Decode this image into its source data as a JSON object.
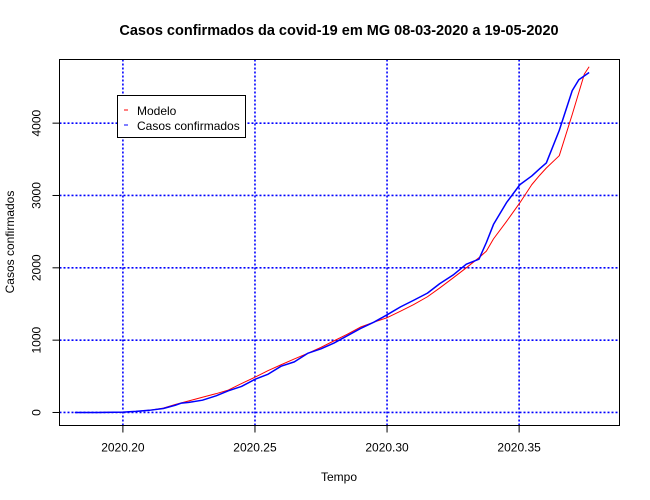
{
  "chart_data": {
    "type": "line",
    "title": "Casos confirmados da covid-19 em MG 08-03-2020 a 19-05-2020",
    "xlabel": "Tempo",
    "ylabel": "Casos confirmados",
    "xlim": [
      2020.176,
      2020.388
    ],
    "ylim": [
      -180,
      4880
    ],
    "x_ticks": [
      2020.2,
      2020.25,
      2020.3,
      2020.35
    ],
    "x_tick_labels": [
      "2020.20",
      "2020.25",
      "2020.30",
      "2020.35"
    ],
    "y_ticks": [
      0,
      1000,
      2000,
      3000,
      4000
    ],
    "y_tick_labels": [
      "0",
      "1000",
      "2000",
      "3000",
      "4000"
    ],
    "grid": true,
    "grid_color": "#0000ff",
    "legend_position": "top-left",
    "series": [
      {
        "name": "Modelo",
        "color": "#ff0000",
        "x": [
          2020.1818,
          2020.1904,
          2020.2,
          2020.2049,
          2020.21,
          2020.2153,
          2020.2198,
          2020.225,
          2020.2301,
          2020.2353,
          2020.2399,
          2020.2449,
          2020.2501,
          2020.255,
          2020.2599,
          2020.2649,
          2020.2701,
          2020.275,
          2020.2799,
          2020.2849,
          2020.2899,
          2020.2951,
          2020.3,
          2020.3051,
          2020.31,
          2020.3153,
          2020.3199,
          2020.325,
          2020.33,
          2020.3348,
          2020.3376,
          2020.3403,
          2020.3452,
          2020.3503,
          2020.3548,
          2020.3578,
          2020.3603,
          2020.3652,
          2020.3701,
          2020.3747,
          2020.3765
        ],
        "y": [
          0,
          0,
          5,
          15,
          30,
          60,
          110,
          160,
          210,
          260,
          310,
          400,
          490,
          580,
          660,
          740,
          820,
          900,
          990,
          1080,
          1180,
          1250,
          1310,
          1400,
          1490,
          1600,
          1720,
          1860,
          2000,
          2140,
          2230,
          2400,
          2640,
          2900,
          3150,
          3280,
          3380,
          3550,
          4120,
          4680,
          4780
        ]
      },
      {
        "name": "Casos confirmados",
        "color": "#0000ff",
        "x": [
          2020.1818,
          2020.1904,
          2020.2,
          2020.2049,
          2020.21,
          2020.2153,
          2020.2198,
          2020.2222,
          2020.225,
          2020.2301,
          2020.2353,
          2020.2399,
          2020.2449,
          2020.2501,
          2020.255,
          2020.2599,
          2020.2649,
          2020.2701,
          2020.275,
          2020.2799,
          2020.2849,
          2020.2899,
          2020.2951,
          2020.3,
          2020.3051,
          2020.31,
          2020.3153,
          2020.3199,
          2020.325,
          2020.33,
          2020.3348,
          2020.3376,
          2020.3403,
          2020.3452,
          2020.3503,
          2020.3548,
          2020.3578,
          2020.3603,
          2020.3652,
          2020.3701,
          2020.3726,
          2020.3765
        ],
        "y": [
          0,
          0,
          5,
          15,
          30,
          55,
          100,
          130,
          140,
          170,
          230,
          300,
          360,
          460,
          530,
          640,
          700,
          820,
          880,
          960,
          1060,
          1160,
          1250,
          1350,
          1460,
          1550,
          1650,
          1780,
          1900,
          2050,
          2120,
          2350,
          2600,
          2900,
          3150,
          3270,
          3370,
          3450,
          3900,
          4450,
          4600,
          4700
        ]
      }
    ]
  }
}
